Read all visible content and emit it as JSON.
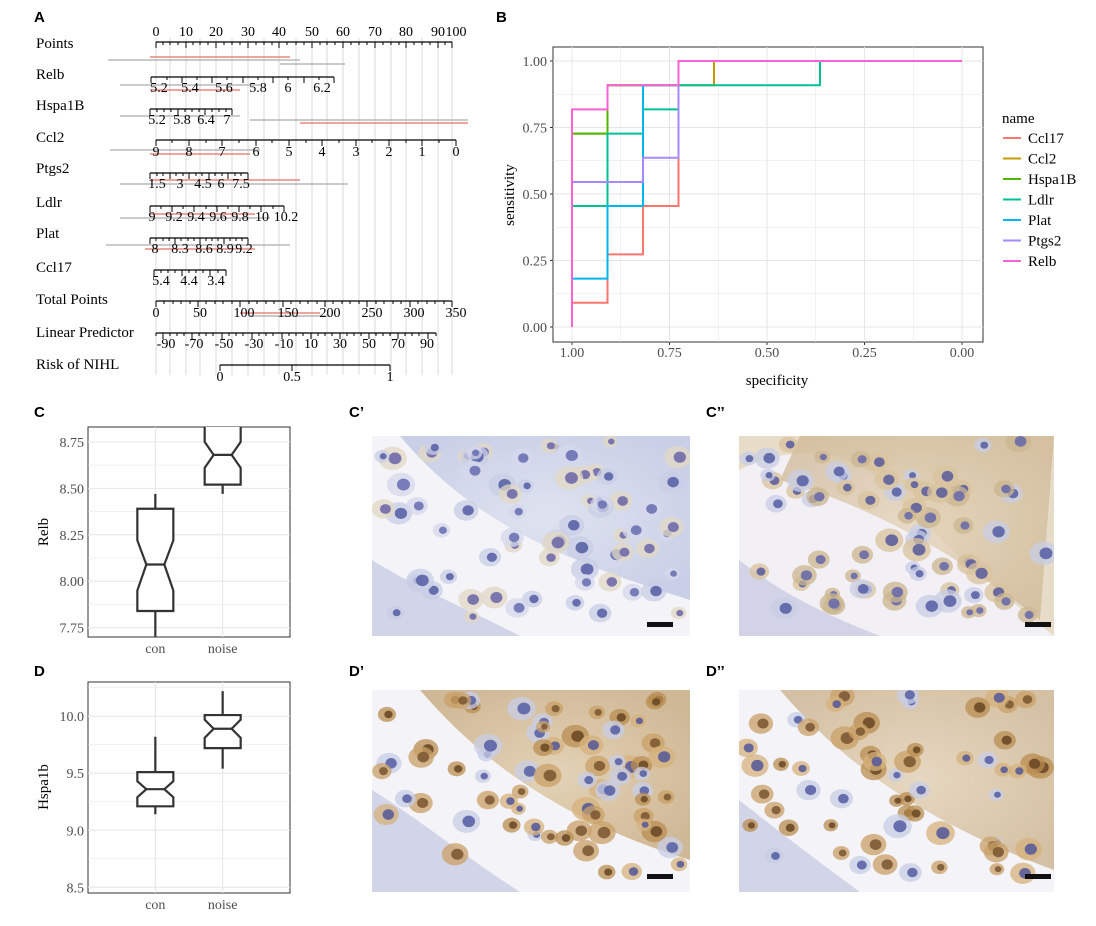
{
  "panels": {
    "A": "A",
    "B": "B",
    "C": "C",
    "C1": "C’",
    "C2": "C’’",
    "D": "D",
    "D1": "D’",
    "D2": "D’’"
  },
  "nomogram": {
    "rows": [
      {
        "name": "Points",
        "ticks": [
          "0",
          "10",
          "20",
          "30",
          "40",
          "50",
          "60",
          "70",
          "80",
          "90",
          "100"
        ]
      },
      {
        "name": "Relb",
        "ticks": [
          "5.2",
          "5.4",
          "5.6",
          "5.8",
          "6",
          "6.2"
        ]
      },
      {
        "name": "Hspa1B",
        "ticks": [
          "5.2",
          "5.8",
          "6.4",
          "7"
        ]
      },
      {
        "name": "Ccl2",
        "ticks": [
          "9",
          "8",
          "7",
          "6",
          "5",
          "4",
          "3",
          "2",
          "1",
          "0"
        ]
      },
      {
        "name": "Ptgs2",
        "ticks": [
          "1.5",
          "3",
          "4.5",
          "6",
          "7.5"
        ]
      },
      {
        "name": "Ldlr",
        "ticks": [
          "9",
          "9.2",
          "9.4",
          "9.6",
          "9.8",
          "10",
          "10.2"
        ]
      },
      {
        "name": "Plat",
        "ticks": [
          "8",
          "8.3",
          "8.6",
          "8.9",
          "9.2"
        ]
      },
      {
        "name": "Ccl17",
        "ticks": [
          "5.4",
          "4.4",
          "3.4"
        ]
      },
      {
        "name": "Total Points",
        "ticks": [
          "0",
          "50",
          "100",
          "150",
          "200",
          "250",
          "300",
          "350"
        ]
      },
      {
        "name": "Linear Predictor",
        "ticks": [
          "-90",
          "-70",
          "-50",
          "-30",
          "-10",
          "10",
          "30",
          "50",
          "70",
          "90"
        ]
      },
      {
        "name": "Risk of NIHL",
        "ticks": [
          "0",
          "0.5",
          "1"
        ]
      }
    ]
  },
  "chart_data": [
    {
      "type": "line",
      "xlabel": "specificity",
      "ylabel": "sensitivity",
      "xlim": [
        1.0,
        0.0
      ],
      "ylim": [
        0,
        1
      ],
      "x_reversed": true,
      "grid": true,
      "xticks": [
        "1.00",
        "0.75",
        "0.50",
        "0.25",
        "0.00"
      ],
      "yticks": [
        "0.00",
        "0.25",
        "0.50",
        "0.75",
        "1.00"
      ],
      "legend_title": "name",
      "legend_position": "right",
      "series": [
        {
          "name": "Ccl17",
          "color": "#F8766D",
          "x": [
            1.0,
            1.0,
            0.909,
            0.909,
            0.818,
            0.818,
            0.727,
            0.727,
            0.0
          ],
          "y": [
            0.0,
            0.091,
            0.091,
            0.273,
            0.273,
            0.455,
            0.455,
            1.0,
            1.0
          ]
        },
        {
          "name": "Ccl2",
          "color": "#C49A00",
          "x": [
            1.0,
            1.0,
            0.909,
            0.909,
            0.636,
            0.636,
            0.0
          ],
          "y": [
            0.0,
            0.727,
            0.727,
            0.909,
            0.909,
            1.0,
            1.0
          ]
        },
        {
          "name": "Hspa1B",
          "color": "#53B400",
          "x": [
            1.0,
            1.0,
            0.909,
            0.909,
            0.727,
            0.727,
            0.0
          ],
          "y": [
            0.0,
            0.727,
            0.727,
            0.909,
            0.909,
            1.0,
            1.0
          ]
        },
        {
          "name": "Ldlr",
          "color": "#00C094",
          "x": [
            1.0,
            1.0,
            0.909,
            0.909,
            0.818,
            0.818,
            0.727,
            0.727,
            0.364,
            0.364,
            0.0
          ],
          "y": [
            0.0,
            0.455,
            0.455,
            0.727,
            0.727,
            0.818,
            0.818,
            0.909,
            0.909,
            1.0,
            1.0
          ]
        },
        {
          "name": "Plat",
          "color": "#00B6EB",
          "x": [
            1.0,
            1.0,
            0.909,
            0.909,
            0.818,
            0.818,
            0.727,
            0.727,
            0.0
          ],
          "y": [
            0.0,
            0.182,
            0.182,
            0.455,
            0.455,
            0.909,
            0.909,
            1.0,
            1.0
          ]
        },
        {
          "name": "Ptgs2",
          "color": "#A58AFF",
          "x": [
            1.0,
            1.0,
            0.818,
            0.818,
            0.727,
            0.727,
            0.0
          ],
          "y": [
            0.0,
            0.545,
            0.545,
            0.636,
            0.636,
            1.0,
            1.0
          ]
        },
        {
          "name": "Relb",
          "color": "#FB61D7",
          "x": [
            1.0,
            1.0,
            0.909,
            0.909,
            0.727,
            0.727,
            0.0
          ],
          "y": [
            0.0,
            0.818,
            0.818,
            0.909,
            0.909,
            1.0,
            1.0
          ]
        }
      ]
    },
    {
      "type": "box",
      "ylabel": "Relb",
      "categories": [
        "con",
        "noise"
      ],
      "ylim": [
        7.7,
        8.83
      ],
      "yticks": [
        "7.75",
        "8.00",
        "8.25",
        "8.50",
        "8.75"
      ],
      "boxes": [
        {
          "category": "con",
          "lower": 7.55,
          "q1": 7.84,
          "median": 8.09,
          "q3": 8.39,
          "upper": 8.47,
          "notch_low": 7.95,
          "notch_high": 8.22
        },
        {
          "category": "noise",
          "lower": 8.47,
          "q1": 8.52,
          "median": 8.68,
          "q3": 8.85,
          "upper": 8.95,
          "notch_low": 8.61,
          "notch_high": 8.75
        }
      ]
    },
    {
      "type": "box",
      "ylabel": "Hspa1b",
      "categories": [
        "con",
        "noise"
      ],
      "ylim": [
        8.45,
        10.3
      ],
      "yticks": [
        "8.5",
        "9.0",
        "9.5",
        "10.0"
      ],
      "boxes": [
        {
          "category": "con",
          "lower": 9.14,
          "q1": 9.21,
          "median": 9.36,
          "q3": 9.51,
          "upper": 9.82,
          "notch_low": 9.29,
          "notch_high": 9.43
        },
        {
          "category": "noise",
          "lower": 9.54,
          "q1": 9.72,
          "median": 9.89,
          "q3": 10.01,
          "upper": 10.22,
          "notch_low": 9.81,
          "notch_high": 9.97
        }
      ]
    }
  ]
}
